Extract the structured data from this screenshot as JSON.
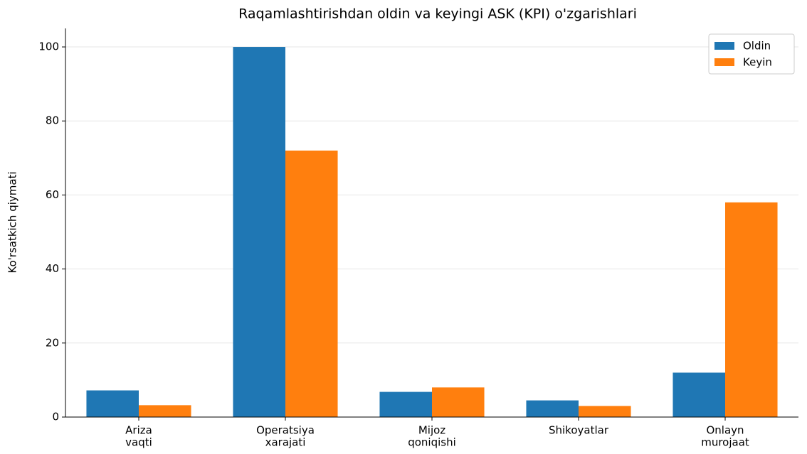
{
  "chart_data": {
    "type": "bar",
    "title": "Raqamlashtirishdan oldin va keyingi ASK (KPI) o'zgarishlari",
    "y_label": "Ko'rsatkich qiymati",
    "categories": [
      [
        "Ariza",
        "vaqti"
      ],
      [
        "Operatsiya",
        "xarajati"
      ],
      [
        "Mijoz",
        "qoniqishi"
      ],
      [
        "Shikoyatlar"
      ],
      [
        "Onlayn",
        "murojaat"
      ]
    ],
    "series": [
      {
        "name": "Oldin",
        "color": "#1f77b4",
        "values": [
          7.2,
          100,
          6.8,
          4.5,
          12
        ]
      },
      {
        "name": "Keyin",
        "color": "#ff7f0e",
        "values": [
          3.2,
          72,
          8,
          3,
          58
        ]
      }
    ],
    "ylim": [
      0,
      105
    ],
    "yticks": [
      0,
      20,
      40,
      60,
      80,
      100
    ],
    "grid": true,
    "legend": "upper right"
  }
}
